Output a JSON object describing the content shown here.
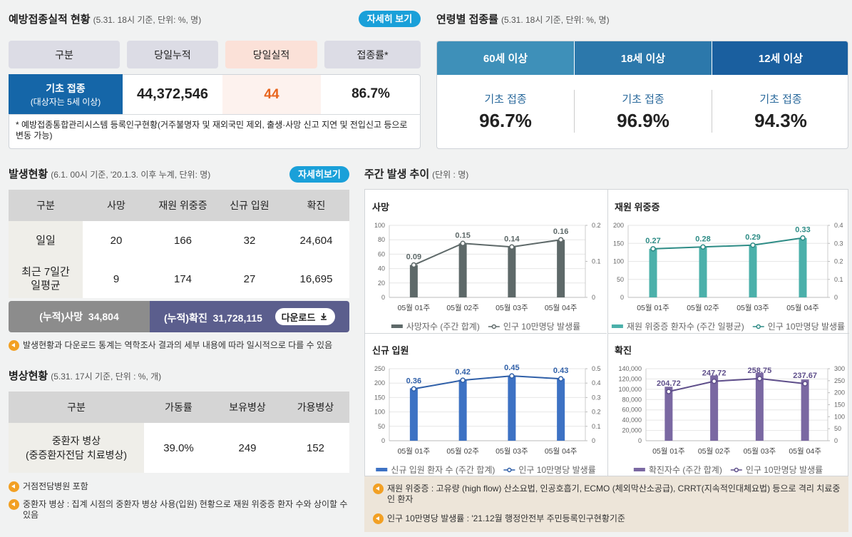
{
  "vaccination": {
    "title": "예방접종실적 현황",
    "subtitle": "(5.31. 18시 기준, 단위: %, 명)",
    "button": "자세히 보기",
    "headers": [
      "구분",
      "당일누적",
      "당일실적",
      "접종률*"
    ],
    "row": {
      "label": "기초 접종",
      "sublabel": "(대상자는 5세 이상)",
      "values": [
        "44,372,546",
        "44",
        "86.7%"
      ]
    },
    "note": "* 예방접종통합관리시스템 등록인구현황(거주불명자 및 재외국민 제외, 출생·사망 신고 지연 및 전입신고 등으로 변동 가능)"
  },
  "age_rates": {
    "title": "연령별 접종률",
    "subtitle": "(5.31. 18시 기준, 단위: %, 명)",
    "tabs": [
      {
        "label": "60세 이상",
        "metric": "기초 접종",
        "value": "96.7%"
      },
      {
        "label": "18세 이상",
        "metric": "기초 접종",
        "value": "96.9%"
      },
      {
        "label": "12세 이상",
        "metric": "기초 접종",
        "value": "94.3%"
      }
    ]
  },
  "outbreak": {
    "title": "발생현황",
    "subtitle": "(6.1. 00시 기준, '20.1.3. 이후 누계, 단위: 명)",
    "button": "자세히보기",
    "headers": [
      "구분",
      "사망",
      "재원 위중증",
      "신규 입원",
      "확진"
    ],
    "rows": [
      [
        "일일",
        "20",
        "166",
        "32",
        "24,604"
      ],
      [
        "최근 7일간 일평균",
        "9",
        "174",
        "27",
        "16,695"
      ]
    ],
    "cumulative": [
      {
        "label": "(누적)사망",
        "value": "34,804"
      },
      {
        "label": "(누적)확진",
        "value": "31,728,115"
      }
    ],
    "download": "다운로드",
    "note": "발생현황과 다운로드 통계는 역학조사 결과의 세부 내용에 따라 일시적으로 다를 수 있음"
  },
  "beds": {
    "title": "병상현황",
    "subtitle": "(5.31. 17시 기준, 단위 : %, 개)",
    "headers": [
      "구분",
      "가동률",
      "보유병상",
      "가용병상"
    ],
    "row": {
      "label": "중환자 병상",
      "sublabel": "(중증환자전담 치료병상)",
      "values": [
        "39.0%",
        "249",
        "152"
      ]
    },
    "notes": [
      "거점전담병원 포함",
      "중환자 병상 : 집계 시점의 중환자 병상 사용(입원) 현황으로 재원 위중증 환자 수와 상이할 수 있음"
    ]
  },
  "weekly": {
    "title": "주간 발생 추이",
    "subtitle": "(단위 : 명)"
  },
  "chart_data": [
    {
      "type": "combo",
      "title": "사망",
      "categories": [
        "05월 01주",
        "05월 02주",
        "05월 03주",
        "05월 04주"
      ],
      "series": [
        {
          "name": "사망자수 (주간 합계)",
          "type": "bar",
          "color": "#5e6969",
          "values": [
            45,
            75,
            70,
            80
          ]
        },
        {
          "name": "인구 10만명당 발생률",
          "type": "line",
          "axis": "y2",
          "color": "#5e6969",
          "values": [
            0.09,
            0.15,
            0.14,
            0.16
          ]
        }
      ],
      "ylim": [
        0,
        100
      ],
      "yticks": [
        0,
        20,
        40,
        60,
        80,
        100
      ],
      "y2lim": [
        0,
        0.2
      ],
      "y2ticks": [
        0,
        0.1,
        0.2
      ],
      "grid": true
    },
    {
      "type": "combo",
      "title": "재원 위중증",
      "categories": [
        "05월 01주",
        "05월 02주",
        "05월 03주",
        "05월 04주"
      ],
      "series": [
        {
          "name": "재원 위중증 환자수 (주간 일평균)",
          "type": "bar",
          "color": "#4bb0aa",
          "values": [
            135,
            140,
            143,
            165
          ]
        },
        {
          "name": "인구 10만명당 발생률",
          "type": "line",
          "axis": "y2",
          "color": "#2e8c86",
          "values": [
            0.27,
            0.28,
            0.29,
            0.33
          ]
        }
      ],
      "ylim": [
        0,
        200
      ],
      "yticks": [
        0,
        50,
        100,
        150,
        200
      ],
      "y2lim": [
        0,
        0.4
      ],
      "y2ticks": [
        0,
        0.1,
        0.2,
        0.3,
        0.4
      ],
      "grid": true
    },
    {
      "type": "combo",
      "title": "신규 입원",
      "categories": [
        "05월 01주",
        "05월 02주",
        "05월 03주",
        "05월 04주"
      ],
      "series": [
        {
          "name": "신규 입원 환자 수 (주간 합계)",
          "type": "bar",
          "color": "#3d72c4",
          "values": [
            182,
            212,
            226,
            216
          ]
        },
        {
          "name": "인구 10만명당 발생률",
          "type": "line",
          "axis": "y2",
          "color": "#2f5fa8",
          "values": [
            0.36,
            0.42,
            0.45,
            0.43
          ]
        }
      ],
      "ylim": [
        0,
        250
      ],
      "yticks": [
        0,
        50,
        100,
        150,
        200,
        250
      ],
      "y2lim": [
        0,
        0.5
      ],
      "y2ticks": [
        0,
        0.1,
        0.2,
        0.3,
        0.4,
        0.5
      ],
      "grid": true
    },
    {
      "type": "combo",
      "title": "확진",
      "categories": [
        "05월 01주",
        "05월 02주",
        "05월 03주",
        "05월 04주"
      ],
      "series": [
        {
          "name": "확진자수 (주간 합계)",
          "type": "bar",
          "color": "#7a68a2",
          "values": [
            105000,
            127000,
            132000,
            119000
          ]
        },
        {
          "name": "인구 10만명당 발생률",
          "type": "line",
          "axis": "y2",
          "color": "#5e4e8a",
          "values": [
            204.72,
            247.72,
            258.75,
            237.67
          ]
        }
      ],
      "ylim": [
        0,
        140000
      ],
      "yticks": [
        0,
        {
          "value": 20000,
          "label": "20,000"
        },
        {
          "value": 40000,
          "label": "40,000"
        },
        {
          "value": 60000,
          "label": "60,000"
        },
        {
          "value": 80000,
          "label": "80,000"
        },
        {
          "value": 100000,
          "label": "100,000"
        },
        {
          "value": 120000,
          "label": "120,000"
        },
        {
          "value": 140000,
          "label": "140,000"
        }
      ],
      "y2lim": [
        0,
        300
      ],
      "y2ticks": [
        0,
        50,
        100,
        150,
        200,
        250,
        300
      ],
      "grid": true
    }
  ],
  "footnotes": [
    "재원 위중증 : 고유량 (high flow) 산소요법, 인공호흡기, ECMO (체외막산소공급), CRRT(지속적인대체요법) 등으로 격리 치료중인 환자",
    "인구 10만명당 발생률 : '21.12월 행정안전부 주민등록인구현황기준"
  ]
}
